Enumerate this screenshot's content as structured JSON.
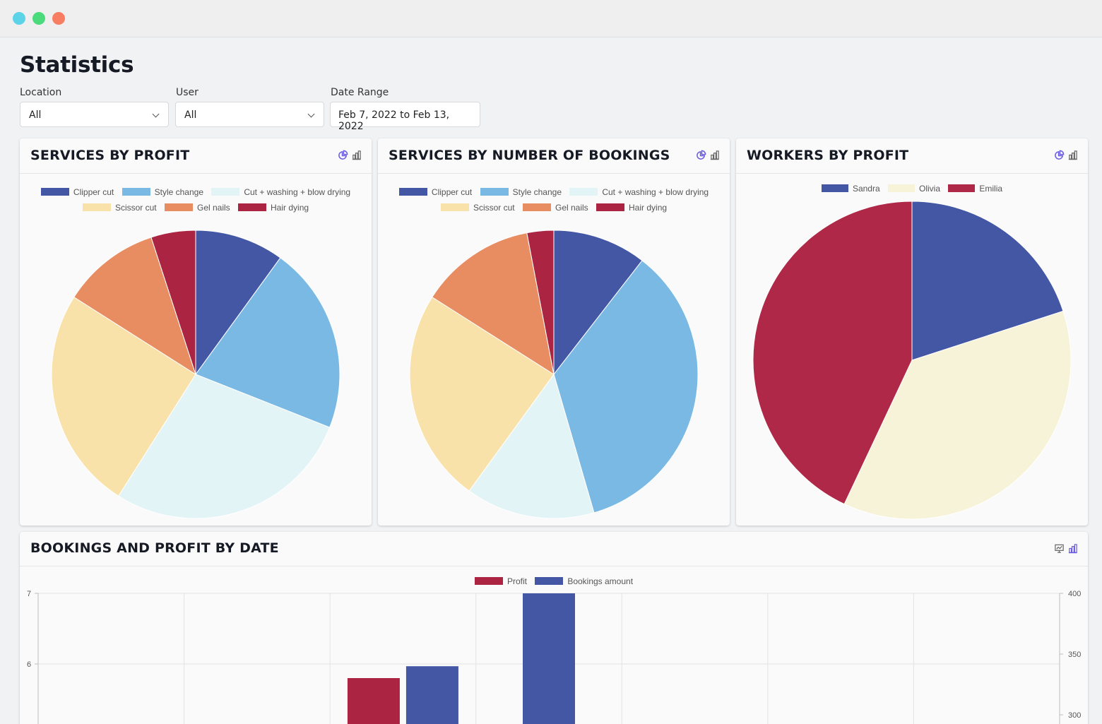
{
  "window": {
    "controls": [
      "close",
      "minimize",
      "zoom"
    ]
  },
  "page": {
    "title": "Statistics"
  },
  "filters": {
    "location": {
      "label": "Location",
      "value": "All"
    },
    "user": {
      "label": "User",
      "value": "All"
    },
    "date_range": {
      "label": "Date Range",
      "value": "Feb 7, 2022 to Feb 13, 2022"
    }
  },
  "colors": {
    "clipper": "#4457a4",
    "style": "#7bb9e5",
    "cut_wash": "#e3f4f7",
    "scissor": "#f9e2a9",
    "gel": "#e88d62",
    "hair_dying": "#ab2442",
    "sandra": "#4457a4",
    "olivia": "#f6f3d8",
    "emilia": "#b02848",
    "profit": "#ab2442",
    "bookings": "#4457a4"
  },
  "icons": {
    "pie_chart": "pie-chart-icon",
    "bar_chart": "bar-chart-icon",
    "line_chart": "line-chart-icon"
  },
  "cards": {
    "services_profit": {
      "title": "SERVICES BY PROFIT",
      "chart_data": {
        "type": "pie",
        "labels": [
          "Clipper cut",
          "Style change",
          "Cut + washing + blow drying",
          "Scissor cut",
          "Gel nails",
          "Hair dying"
        ],
        "values": [
          10,
          21,
          28,
          25,
          11,
          5
        ]
      }
    },
    "services_bookings": {
      "title": "SERVICES BY NUMBER OF BOOKINGS",
      "chart_data": {
        "type": "pie",
        "labels": [
          "Clipper cut",
          "Style change",
          "Cut + washing + blow drying",
          "Scissor cut",
          "Gel nails",
          "Hair dying"
        ],
        "values": [
          10.5,
          35,
          14.5,
          24,
          13,
          3
        ]
      }
    },
    "workers_profit": {
      "title": "WORKERS BY PROFIT",
      "chart_data": {
        "type": "pie",
        "labels": [
          "Sandra",
          "Olivia",
          "Emilia"
        ],
        "values": [
          20,
          37,
          43
        ]
      }
    },
    "bookings_by_date": {
      "title": "BOOKINGS AND PROFIT BY DATE",
      "chart_data": {
        "type": "bar",
        "series": [
          {
            "name": "Profit",
            "values": [
              null,
              null,
              5.8,
              null,
              null,
              null,
              null
            ],
            "axis": "left"
          },
          {
            "name": "Bookings amount",
            "values": [
              null,
              null,
              340,
              400,
              null,
              null,
              null
            ],
            "axis": "right"
          }
        ],
        "y_left_ticks": [
          "7",
          "6"
        ],
        "y_right_ticks": [
          "400",
          "350",
          "300"
        ]
      }
    }
  }
}
